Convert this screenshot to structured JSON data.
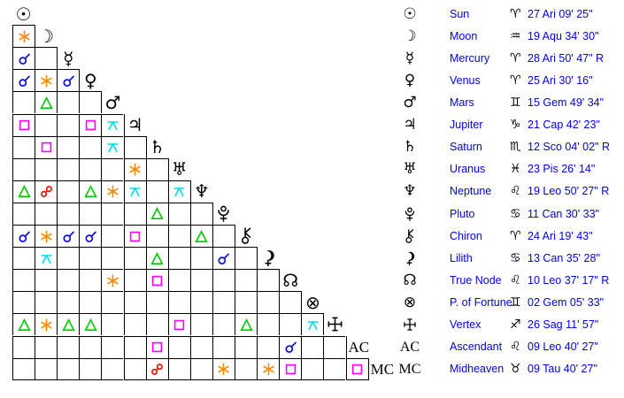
{
  "colors": {
    "background": "#ffffff",
    "grid_line": "#000000",
    "glyph_black": "#000000",
    "text_blue": "#0000ee"
  },
  "aspect_types": {
    "conjunction": "#0000ee",
    "sextile": "#ff8800",
    "square": "#ff00ff",
    "trine": "#00cc00",
    "opposition": "#ff0000",
    "quincunx": "#00dde8"
  },
  "glyph_chars": {
    "sun": "☉",
    "moon": "☽",
    "mercury": "☿",
    "venus": "♀",
    "mars": "♂",
    "jupiter": "♃",
    "saturn": "♄",
    "uranus": "♅",
    "neptune": "♆",
    "true-node": "☊",
    "fortune": "⊗",
    "ascendant": "AC",
    "midheaven": "MC",
    "aries": "♈",
    "taurus": "♉",
    "gemini": "♊",
    "cancer": "♋",
    "leo": "♌",
    "scorpio": "♏",
    "sagittarius": "♐",
    "capricorn": "♑",
    "aquarius": "♒",
    "pisces": "♓"
  },
  "planets": [
    {
      "name": "Sun",
      "glyph": "sun",
      "sign": "aries",
      "position": "27 Ari 09' 25\""
    },
    {
      "name": "Moon",
      "glyph": "moon",
      "sign": "aquarius",
      "position": "19 Aqu 34' 30\""
    },
    {
      "name": "Mercury",
      "glyph": "mercury",
      "sign": "aries",
      "position": "28 Ari 50' 47\" R"
    },
    {
      "name": "Venus",
      "glyph": "venus",
      "sign": "aries",
      "position": "25 Ari 30' 16\""
    },
    {
      "name": "Mars",
      "glyph": "mars",
      "sign": "gemini",
      "position": "15 Gem 49' 34\""
    },
    {
      "name": "Jupiter",
      "glyph": "jupiter",
      "sign": "capricorn",
      "position": "21 Cap 42' 23\""
    },
    {
      "name": "Saturn",
      "glyph": "saturn",
      "sign": "scorpio",
      "position": "12 Sco 04' 02\" R"
    },
    {
      "name": "Uranus",
      "glyph": "uranus",
      "sign": "pisces",
      "position": "23 Pis 26' 14\""
    },
    {
      "name": "Neptune",
      "glyph": "neptune",
      "sign": "leo",
      "position": "19 Leo 50' 27\" R"
    },
    {
      "name": "Pluto",
      "glyph": "pluto",
      "sign": "cancer",
      "position": "11 Can 30' 33\""
    },
    {
      "name": "Chiron",
      "glyph": "chiron",
      "sign": "aries",
      "position": "24 Ari 19' 43\""
    },
    {
      "name": "Lilith",
      "glyph": "lilith",
      "sign": "cancer",
      "position": "13 Can 35' 28\""
    },
    {
      "name": "True Node",
      "glyph": "true-node",
      "sign": "leo",
      "position": "10 Leo 37' 17\" R"
    },
    {
      "name": "P. of Fortune",
      "glyph": "fortune",
      "sign": "gemini",
      "position": "02 Gem 05' 33\""
    },
    {
      "name": "Vertex",
      "glyph": "vertex",
      "sign": "sagittarius",
      "position": "26 Sag 11' 57\""
    },
    {
      "name": "Ascendant",
      "glyph": "ascendant",
      "sign": "leo",
      "position": "09 Leo 40' 27\""
    },
    {
      "name": "Midheaven",
      "glyph": "midheaven",
      "sign": "taurus",
      "position": "09 Tau 40' 27\""
    }
  ],
  "aspect_grid": [
    [],
    [
      "sextile"
    ],
    [
      "conjunction",
      ""
    ],
    [
      "conjunction",
      "sextile",
      "conjunction"
    ],
    [
      "",
      "trine",
      "",
      ""
    ],
    [
      "square",
      "",
      "",
      "square",
      "quincunx"
    ],
    [
      "",
      "square",
      "",
      "",
      "quincunx",
      ""
    ],
    [
      "",
      "",
      "",
      "",
      "",
      "sextile",
      ""
    ],
    [
      "trine",
      "opposition",
      "",
      "trine",
      "sextile",
      "quincunx",
      "",
      "quincunx"
    ],
    [
      "",
      "",
      "",
      "",
      "",
      "",
      "trine",
      "",
      ""
    ],
    [
      "conjunction",
      "sextile",
      "conjunction",
      "conjunction",
      "",
      "square",
      "",
      "",
      "trine",
      ""
    ],
    [
      "",
      "quincunx",
      "",
      "",
      "",
      "",
      "trine",
      "",
      "",
      "conjunction",
      ""
    ],
    [
      "",
      "",
      "",
      "",
      "sextile",
      "",
      "square",
      "",
      "",
      "",
      "",
      ""
    ],
    [
      "",
      "",
      "",
      "",
      "",
      "",
      "",
      "",
      "",
      "",
      "",
      "",
      ""
    ],
    [
      "trine",
      "sextile",
      "trine",
      "trine",
      "",
      "",
      "",
      "square",
      "",
      "",
      "trine",
      "",
      "",
      "quincunx"
    ],
    [
      "",
      "",
      "",
      "",
      "",
      "",
      "square",
      "",
      "",
      "",
      "",
      "",
      "conjunction",
      "",
      ""
    ],
    [
      "",
      "",
      "",
      "",
      "",
      "",
      "opposition",
      "",
      "",
      "sextile",
      "",
      "sextile",
      "square",
      "",
      "",
      "square"
    ]
  ]
}
